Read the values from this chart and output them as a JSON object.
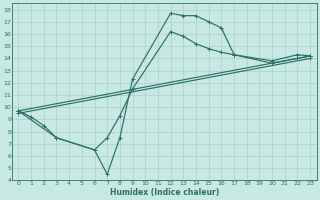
{
  "xlabel": "Humidex (Indice chaleur)",
  "xlim": [
    -0.5,
    23.5
  ],
  "ylim": [
    4,
    18.5
  ],
  "xticks": [
    0,
    1,
    2,
    3,
    4,
    5,
    6,
    7,
    8,
    9,
    10,
    11,
    12,
    13,
    14,
    15,
    16,
    17,
    18,
    19,
    20,
    21,
    22,
    23
  ],
  "yticks": [
    4,
    5,
    6,
    7,
    8,
    9,
    10,
    11,
    12,
    13,
    14,
    15,
    16,
    17,
    18
  ],
  "bg_color": "#c8e8e4",
  "grid_color": "#aed4d0",
  "line_color": "#2a7068",
  "line1_x": [
    0,
    1,
    2,
    3,
    6,
    7,
    8,
    9,
    12,
    13,
    14,
    15,
    16,
    17,
    20,
    22,
    23
  ],
  "line1_y": [
    9.7,
    9.2,
    8.5,
    7.5,
    6.5,
    4.5,
    7.5,
    12.3,
    17.7,
    17.5,
    17.5,
    17.0,
    16.5,
    14.3,
    13.8,
    14.3,
    14.2
  ],
  "line2_x": [
    0,
    3,
    6,
    7,
    8,
    9,
    12,
    13,
    14,
    15,
    16,
    17,
    20,
    22,
    23
  ],
  "line2_y": [
    9.7,
    7.5,
    6.5,
    7.5,
    9.3,
    11.5,
    16.2,
    15.8,
    15.2,
    14.8,
    14.5,
    14.3,
    13.6,
    14.0,
    14.2
  ],
  "line3_x": [
    0,
    23
  ],
  "line3_y": [
    9.7,
    14.2
  ],
  "line4_x": [
    0,
    23
  ],
  "line4_y": [
    9.5,
    14.0
  ]
}
